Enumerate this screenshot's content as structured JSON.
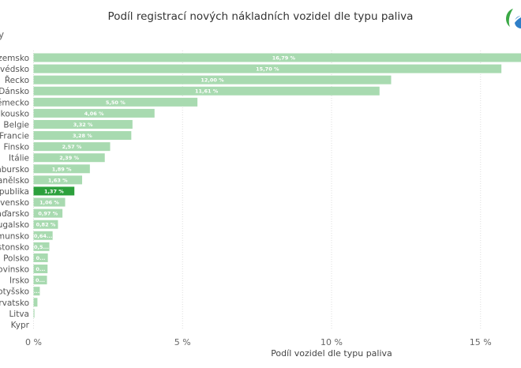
{
  "title": "Podíl registrací nových nákladních vozidel dle typu paliva",
  "corner_text": "y",
  "logo": "green-blue-leaf-logo",
  "chart_data": {
    "type": "bar",
    "orientation": "horizontal",
    "xlabel": "Podíl vozidel dle typu paliva",
    "ylabel": "",
    "xlim": [
      0,
      16.79
    ],
    "xticks": [
      "0 %",
      "5 %",
      "10 %",
      "15 %"
    ],
    "xtick_values": [
      0,
      5,
      10,
      15
    ],
    "grid": true,
    "colors": {
      "default": "#a8dab0",
      "highlight": "#2ca03c"
    },
    "highlight": "Česká republika",
    "categories": [
      "Nizozemsko",
      "Švédsko",
      "Řecko",
      "Dánsko",
      "Německo",
      "Rakousko",
      "Belgie",
      "Francie",
      "Finsko",
      "Itálie",
      "Lucembursko",
      "Španělsko",
      "Česká republika",
      "Slovensko",
      "Maďarsko",
      "Portugalsko",
      "Rumunsko",
      "Estonsko",
      "Polsko",
      "Slovinsko",
      "Irsko",
      "Lotyšsko",
      "Chorvatsko",
      "Litva",
      "Kypr"
    ],
    "values": [
      16.79,
      15.7,
      12.0,
      11.61,
      5.5,
      4.06,
      3.32,
      3.28,
      2.57,
      2.39,
      1.89,
      1.63,
      1.37,
      1.06,
      0.97,
      0.82,
      0.64,
      0.53,
      0.48,
      0.47,
      0.45,
      0.21,
      0.13,
      0.03,
      0
    ],
    "data_labels": [
      "16,79 %",
      "15,70 %",
      "12,00 %",
      "11,61 %",
      "5,50 %",
      "4,06 %",
      "3,32 %",
      "3,28 %",
      "2,57 %",
      "2,39 %",
      "1,89 %",
      "1,63 %",
      "1,37 %",
      "1,06 %",
      "0,97 %",
      "0,82 %",
      "0,64...",
      "0,5...",
      "0...",
      "0...",
      "0...",
      "...",
      "",
      "",
      ""
    ]
  }
}
